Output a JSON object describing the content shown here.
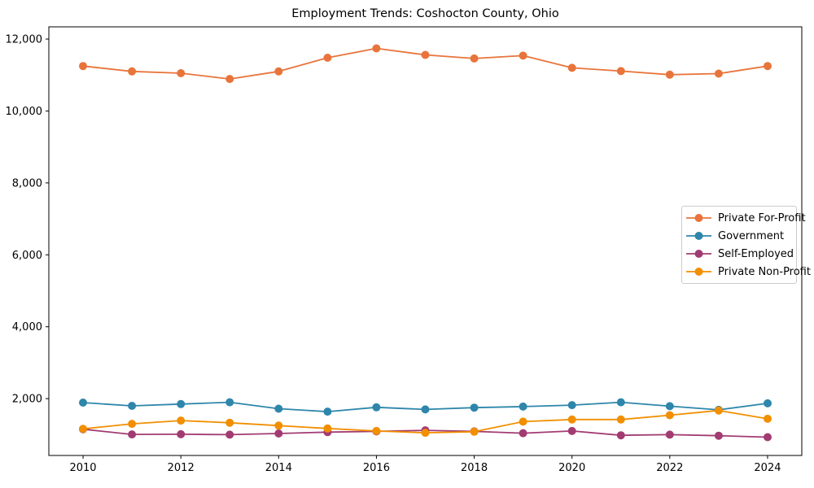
{
  "chart_data": {
    "type": "line",
    "title": "Employment Trends: Coshocton County, Ohio",
    "xlabel": "",
    "ylabel": "",
    "x": [
      2010,
      2011,
      2012,
      2013,
      2014,
      2015,
      2016,
      2017,
      2018,
      2019,
      2020,
      2021,
      2022,
      2023,
      2024
    ],
    "x_tick_labels": [
      "2010",
      "2012",
      "2014",
      "2016",
      "2018",
      "2020",
      "2022",
      "2024"
    ],
    "y_tick_values": [
      2000,
      4000,
      6000,
      8000,
      10000,
      12000
    ],
    "y_tick_labels": [
      "2,000",
      "4,000",
      "6,000",
      "8,000",
      "10,000",
      "12,000"
    ],
    "xlim": [
      2009.3,
      2024.7
    ],
    "ylim": [
      420,
      12340
    ],
    "grid": false,
    "legend_position": "center right",
    "marker": "circle",
    "series": [
      {
        "name": "Private For-Profit",
        "color": "#E8743B",
        "values": [
          11250,
          11100,
          11050,
          10890,
          11100,
          11480,
          11740,
          11560,
          11460,
          11540,
          11200,
          11110,
          11010,
          11040,
          11250
        ]
      },
      {
        "name": "Government",
        "color": "#2E86AB",
        "values": [
          1890,
          1800,
          1850,
          1900,
          1720,
          1640,
          1760,
          1700,
          1750,
          1780,
          1820,
          1900,
          1790,
          1690,
          1870
        ]
      },
      {
        "name": "Self-Employed",
        "color": "#A23B72",
        "values": [
          1150,
          1005,
          1010,
          1000,
          1030,
          1070,
          1090,
          1120,
          1090,
          1040,
          1100,
          980,
          1000,
          970,
          930
        ]
      },
      {
        "name": "Private Non-Profit",
        "color": "#F18F01",
        "values": [
          1160,
          1300,
          1390,
          1330,
          1250,
          1170,
          1100,
          1050,
          1080,
          1360,
          1420,
          1420,
          1540,
          1670,
          1440
        ]
      }
    ]
  }
}
